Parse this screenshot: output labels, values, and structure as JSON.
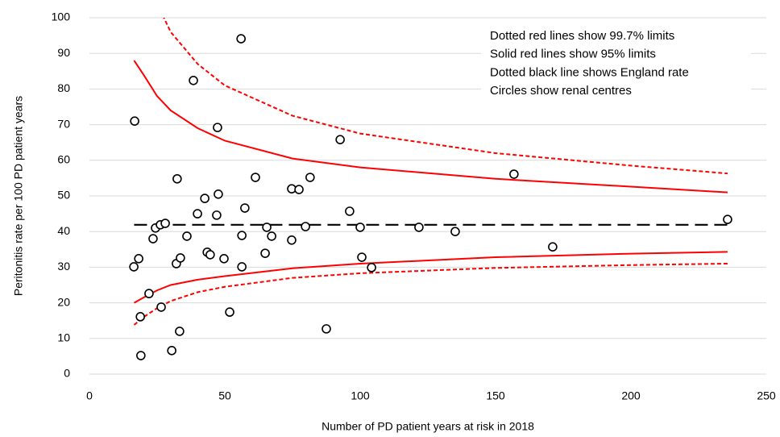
{
  "chart_data": {
    "type": "scatter",
    "xlabel": "Number of PD patient years at risk in 2018",
    "ylabel": "Peritonitis rate per 100 PD patient years",
    "xlim": [
      0,
      250
    ],
    "ylim": [
      0,
      100
    ],
    "xticks": [
      0,
      50,
      100,
      150,
      200,
      250
    ],
    "yticks": [
      0,
      10,
      20,
      30,
      40,
      50,
      60,
      70,
      80,
      90,
      100
    ],
    "grid": true,
    "notes": [
      "Dotted red lines show 99.7% limits",
      "Solid red lines show 95% limits",
      "Dotted black line shows England rate",
      "Circles show renal centres"
    ],
    "marker_color": "#000000",
    "x": [
      16.7,
      16.4,
      18.2,
      18.8,
      19.0,
      22.0,
      23.5,
      24.4,
      26.2,
      28.0,
      26.5,
      30.4,
      32.4,
      32.1,
      33.6,
      33.3,
      36.0,
      38.4,
      39.9,
      42.6,
      43.5,
      44.6,
      47.0,
      47.6,
      47.3,
      49.7,
      51.8,
      56.0,
      56.3,
      56.3,
      57.4,
      61.3,
      64.9,
      65.5,
      67.3,
      74.7,
      77.4,
      74.7,
      79.8,
      81.5,
      87.5,
      92.6,
      96.1,
      100.0,
      100.6,
      104.2,
      121.7,
      135.1,
      156.8,
      171.1,
      235.7
    ],
    "values": [
      71.0,
      30.1,
      32.4,
      16.1,
      5.2,
      22.6,
      38.0,
      41.0,
      41.9,
      42.3,
      18.8,
      6.6,
      54.8,
      31.0,
      32.6,
      12.0,
      38.7,
      82.4,
      45.0,
      49.3,
      34.2,
      33.5,
      44.6,
      50.5,
      69.2,
      32.4,
      17.4,
      94.1,
      38.9,
      30.1,
      46.6,
      55.2,
      33.9,
      41.2,
      38.7,
      52.0,
      51.8,
      37.6,
      41.4,
      55.2,
      12.7,
      65.8,
      45.7,
      41.2,
      32.8,
      29.9,
      41.2,
      40.0,
      56.1,
      35.7,
      43.4
    ],
    "lines": [
      {
        "color": "#ff0000",
        "style": "solid",
        "x": [
          16.5,
          20,
          25,
          30,
          40,
          50,
          75,
          100,
          150,
          200,
          235.7
        ],
        "values": [
          88,
          84,
          78,
          74,
          69,
          65.5,
          60.5,
          58,
          54.8,
          52.6,
          51
        ]
      },
      {
        "color": "#ff0000",
        "style": "solid",
        "x": [
          16.5,
          20,
          25,
          30,
          40,
          50,
          75,
          100,
          150,
          200,
          235.7
        ],
        "values": [
          20,
          21.5,
          23.5,
          25,
          26.5,
          27.5,
          29.7,
          31,
          32.8,
          33.8,
          34.3
        ]
      },
      {
        "color": "#ff0000",
        "style": "dotted",
        "x": [
          16.5,
          20,
          25,
          30,
          40,
          50,
          75,
          100,
          150,
          200,
          235.7
        ],
        "values": [
          null,
          null,
          104,
          96,
          87,
          81,
          72.5,
          67.5,
          62,
          58.5,
          56.3
        ]
      },
      {
        "color": "#ff0000",
        "style": "dotted",
        "x": [
          16.5,
          20,
          25,
          30,
          40,
          50,
          75,
          100,
          150,
          200,
          235.7
        ],
        "values": [
          13.8,
          16,
          18.5,
          20.5,
          23,
          24.5,
          27,
          28.3,
          29.8,
          30.6,
          31
        ]
      },
      {
        "color": "#000000",
        "style": "dashed",
        "x": [
          16.5,
          235.7
        ],
        "values": [
          41.9,
          41.9
        ]
      }
    ]
  }
}
